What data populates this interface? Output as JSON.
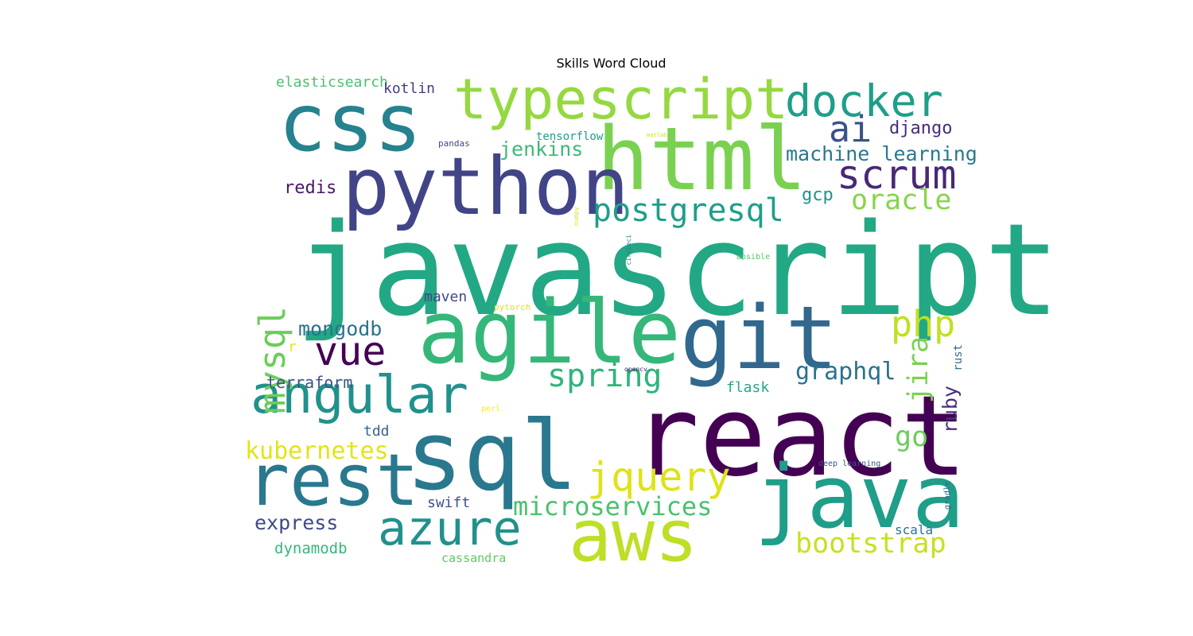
{
  "title": "Skills Word Cloud",
  "words": [
    {
      "text": "javascript",
      "color": "#22a884"
    },
    {
      "text": "react",
      "color": "#440154"
    },
    {
      "text": "sql",
      "color": "#2a788e"
    },
    {
      "text": "agile",
      "color": "#35b779"
    },
    {
      "text": "git",
      "color": "#31688e"
    },
    {
      "text": "java",
      "color": "#1f9e89"
    },
    {
      "text": "html",
      "color": "#7ad151"
    },
    {
      "text": "css",
      "color": "#26828e"
    },
    {
      "text": "python",
      "color": "#414487"
    },
    {
      "text": "rest",
      "color": "#2a788e"
    },
    {
      "text": "aws",
      "color": "#bddf26"
    },
    {
      "text": "typescript",
      "color": "#95d840"
    },
    {
      "text": "angular",
      "color": "#21918c"
    },
    {
      "text": "azure",
      "color": "#21918c"
    },
    {
      "text": "docker",
      "color": "#1f9e89"
    },
    {
      "text": "vue",
      "color": "#440154"
    },
    {
      "text": "scrum",
      "color": "#482878"
    },
    {
      "text": "jquery",
      "color": "#dde318"
    },
    {
      "text": "ai",
      "color": "#3b528b"
    },
    {
      "text": "postgresql",
      "color": "#1f9e89"
    },
    {
      "text": "mysql",
      "color": "#6ccd5a"
    },
    {
      "text": "php",
      "color": "#c2df23"
    },
    {
      "text": "microservices",
      "color": "#4ac16d"
    },
    {
      "text": "spring",
      "color": "#2fb47c"
    },
    {
      "text": "bootstrap",
      "color": "#c8e020"
    },
    {
      "text": "oracle",
      "color": "#86d549"
    },
    {
      "text": "kubernetes",
      "color": "#e2e418"
    },
    {
      "text": "graphql",
      "color": "#2c728e"
    },
    {
      "text": "jira",
      "color": "#7ad151"
    },
    {
      "text": "go",
      "color": "#6ccd5a"
    },
    {
      "text": "mongodb",
      "color": "#2c728e"
    },
    {
      "text": "ruby",
      "color": "#46327e"
    },
    {
      "text": "terraform",
      "color": "#3b528b"
    },
    {
      "text": "express",
      "color": "#3e4989"
    },
    {
      "text": "jenkins",
      "color": "#3aba76"
    },
    {
      "text": "machine learning",
      "color": "#2a788e"
    },
    {
      "text": "django",
      "color": "#472d7b"
    },
    {
      "text": "redis",
      "color": "#481769"
    },
    {
      "text": "gcp",
      "color": "#21918c"
    },
    {
      "text": "dynamodb",
      "color": "#35b779"
    },
    {
      "text": "elasticsearch",
      "color": "#4ac16d"
    },
    {
      "text": "kotlin",
      "color": "#433e85"
    },
    {
      "text": "maven",
      "color": "#3e4a89"
    },
    {
      "text": "tdd",
      "color": "#31668e"
    },
    {
      "text": "flask",
      "color": "#22a785"
    },
    {
      "text": "swift",
      "color": "#3b528b"
    },
    {
      "text": "scala",
      "color": "#2d708e"
    },
    {
      "text": "cassandra",
      "color": "#5ec962"
    },
    {
      "text": "r",
      "color": "#e5e419"
    },
    {
      "text": "rust",
      "color": "#2d708e"
    },
    {
      "text": "tensorflow",
      "color": "#1f9e89"
    },
    {
      "text": "pandas",
      "color": "#3f4788"
    },
    {
      "text": "pytorch",
      "color": "#dde318"
    },
    {
      "text": "ansible",
      "color": "#52c569"
    },
    {
      "text": "deep learning",
      "color": "#39568c"
    },
    {
      "text": "gradle",
      "color": "#31688e"
    },
    {
      "text": "perl",
      "color": "#fde725"
    },
    {
      "text": "opencv",
      "color": "#482475"
    },
    {
      "text": "matlab",
      "color": "#d0e11c"
    },
    {
      "text": "numpy",
      "color": "#dde318"
    },
    {
      "text": "circleci",
      "color": "#2a788e"
    }
  ]
}
